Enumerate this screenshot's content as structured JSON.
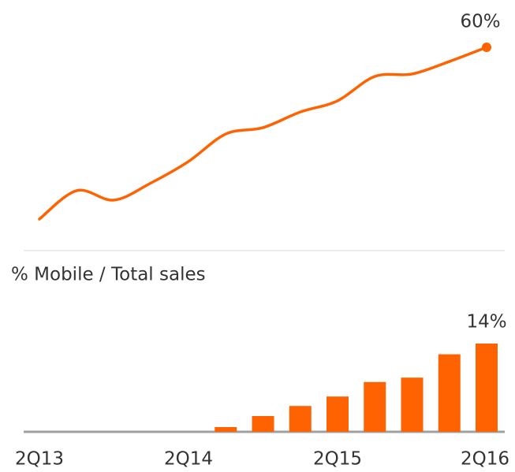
{
  "chart_data": [
    {
      "type": "line",
      "values": [
        9.3,
        17.7,
        14.9,
        20.0,
        26.3,
        34.4,
        36.3,
        40.9,
        44.2,
        51.4,
        52.1,
        55.8,
        60
      ],
      "value_labels": [
        null,
        null,
        null,
        null,
        null,
        null,
        null,
        null,
        null,
        null,
        null,
        null,
        "60%"
      ],
      "color": "#ff6200"
    },
    {
      "type": "bar",
      "title": "% Mobile / Total sales",
      "categories": [
        "2Q13",
        null,
        null,
        null,
        "2Q14",
        null,
        null,
        null,
        "2Q15",
        null,
        null,
        null,
        "2Q16"
      ],
      "values": [
        null,
        null,
        null,
        null,
        null,
        0.75,
        2.5,
        4.1,
        5.6,
        7.9,
        8.6,
        12.3,
        14
      ],
      "value_labels": [
        null,
        null,
        null,
        null,
        null,
        null,
        null,
        null,
        null,
        null,
        null,
        null,
        "14%"
      ],
      "color": "#ff6200"
    }
  ]
}
